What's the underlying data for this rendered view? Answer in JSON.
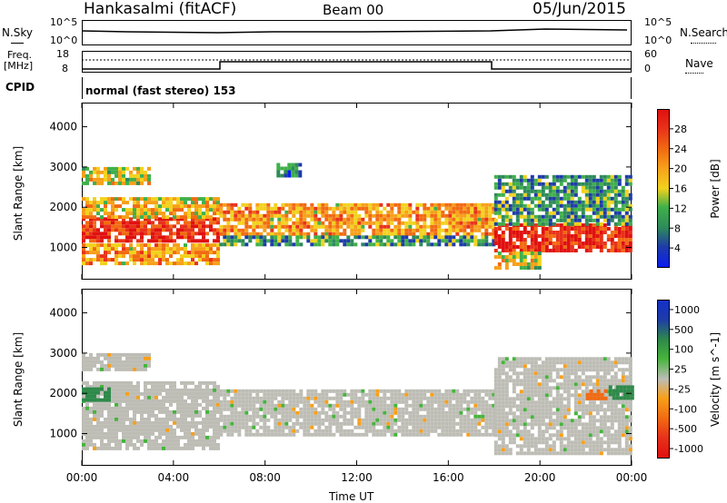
{
  "header": {
    "station": "Hankasalmi (fitACF)",
    "beam": "Beam 00",
    "date": "05/Jun/2015"
  },
  "noise_panel": {
    "left_label": "N.Sky",
    "right_label": "N.Search",
    "left_ticks": [
      "10^5",
      "10^0"
    ],
    "right_ticks": [
      "10^5",
      "10^0"
    ]
  },
  "freq_panel": {
    "left_label_1": "Freq.",
    "left_label_2": "[MHz]",
    "left_ticks": [
      "18",
      "8"
    ],
    "right_label": "Nave",
    "right_ticks": [
      "60",
      "0"
    ]
  },
  "cpid_panel": {
    "label": "CPID",
    "value": "normal (fast stereo) 153"
  },
  "colors": {
    "power_scale": [
      "#0a1ef0",
      "#1e3ca8",
      "#2e8a5a",
      "#3fb04a",
      "#f2d21e",
      "#f7a01a",
      "#f26a12",
      "#e8321a",
      "#e01010"
    ],
    "velocity_scale": [
      "#1430c8",
      "#2e8a4a",
      "#46b43c",
      "#bdbdb6",
      "#f7a01a",
      "#f26a12",
      "#e8321a",
      "#e01010"
    ]
  },
  "chart_data": [
    {
      "type": "heatmap",
      "title": "",
      "xlabel": "Time UT",
      "ylabel": "Slant Range [km]",
      "x_ticks": [
        "00:00",
        "04:00",
        "08:00",
        "12:00",
        "16:00",
        "20:00",
        "00:00"
      ],
      "y_ticks": [
        "1000",
        "2000",
        "3000",
        "4000"
      ],
      "xlim": [
        0,
        24
      ],
      "ylim": [
        200,
        4600
      ],
      "colorbar": {
        "label": "Power [dB]",
        "tick_labels": [
          "4",
          "8",
          "12",
          "16",
          "20",
          "24",
          "28"
        ],
        "range": [
          0,
          32
        ]
      },
      "bands": [
        {
          "t": [
            0,
            6
          ],
          "r": [
            1150,
            1750
          ],
          "value": 28
        },
        {
          "t": [
            0,
            6
          ],
          "r": [
            1750,
            2250
          ],
          "value": 18
        },
        {
          "t": [
            0,
            3
          ],
          "r": [
            2600,
            3000
          ],
          "value": 16
        },
        {
          "t": [
            0,
            6
          ],
          "r": [
            600,
            1100
          ],
          "value": 20
        },
        {
          "t": [
            6,
            18
          ],
          "r": [
            1300,
            2100
          ],
          "value": 20
        },
        {
          "t": [
            6,
            18
          ],
          "r": [
            1050,
            1300
          ],
          "value": 10
        },
        {
          "t": [
            8.5,
            9.5
          ],
          "r": [
            2800,
            3100
          ],
          "value": 8
        },
        {
          "t": [
            18,
            24
          ],
          "r": [
            950,
            1600
          ],
          "value": 28
        },
        {
          "t": [
            18,
            24
          ],
          "r": [
            1600,
            2800
          ],
          "value": 10
        },
        {
          "t": [
            18,
            20
          ],
          "r": [
            500,
            900
          ],
          "value": 16
        }
      ]
    },
    {
      "type": "heatmap",
      "title": "",
      "xlabel": "Time UT",
      "ylabel": "Slant Range [km]",
      "x_ticks": [
        "00:00",
        "04:00",
        "08:00",
        "12:00",
        "16:00",
        "20:00",
        "00:00"
      ],
      "y_ticks": [
        "1000",
        "2000",
        "3000",
        "4000"
      ],
      "xlim": [
        0,
        24
      ],
      "ylim": [
        200,
        4600
      ],
      "colorbar": {
        "label": "Velocity [m s^-1]",
        "tick_labels": [
          "1000",
          "500",
          "100",
          "25",
          "-25",
          "-100",
          "-500",
          "-1000"
        ],
        "range": [
          -1000,
          1000
        ]
      },
      "bands": [
        {
          "t": [
            0,
            6
          ],
          "r": [
            600,
            2300
          ],
          "value": 0
        },
        {
          "t": [
            0,
            1.2
          ],
          "r": [
            1850,
            2150
          ],
          "value": 150
        },
        {
          "t": [
            0,
            3
          ],
          "r": [
            2600,
            3000
          ],
          "value": 0
        },
        {
          "t": [
            6,
            18
          ],
          "r": [
            1000,
            2100
          ],
          "value": 0
        },
        {
          "t": [
            18,
            24
          ],
          "r": [
            500,
            2900
          ],
          "value": 0
        },
        {
          "t": [
            23,
            24
          ],
          "r": [
            1900,
            2200
          ],
          "value": 150
        },
        {
          "t": [
            22,
            22.8
          ],
          "r": [
            1900,
            2100
          ],
          "value": -150
        }
      ]
    }
  ]
}
